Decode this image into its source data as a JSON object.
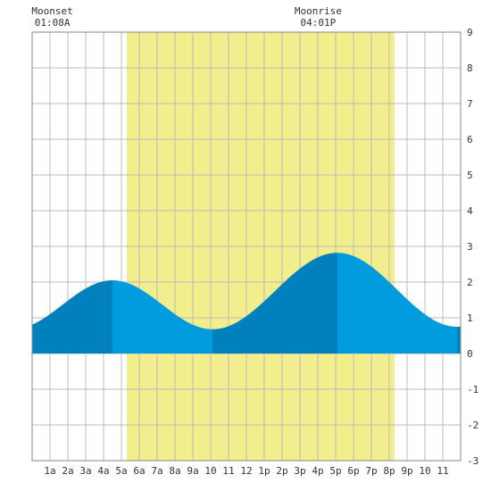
{
  "chart_data": {
    "type": "area",
    "title": "",
    "xlabel": "",
    "ylabel": "",
    "x_range": [
      0,
      24
    ],
    "ylim": [
      -3,
      9
    ],
    "y_ticks": [
      "-3",
      "-2",
      "-1",
      "0",
      "1",
      "2",
      "3",
      "4",
      "5",
      "6",
      "7",
      "8",
      "9"
    ],
    "x_tick_hours": [
      1,
      2,
      3,
      4,
      5,
      6,
      7,
      8,
      9,
      10,
      11,
      12,
      13,
      14,
      15,
      16,
      17,
      18,
      19,
      20,
      21,
      22,
      23
    ],
    "x_tick_labels": [
      "1a",
      "2a",
      "3a",
      "4a",
      "5a",
      "6a",
      "7a",
      "8a",
      "9a",
      "10",
      "11",
      "12",
      "1p",
      "2p",
      "3p",
      "4p",
      "5p",
      "6p",
      "7p",
      "8p",
      "9p",
      "10",
      "11"
    ],
    "daylight_hours": [
      5.3,
      20.3
    ],
    "moon_events": [
      {
        "label": "Moonset",
        "time": "01:08A",
        "hour": 1.13
      },
      {
        "label": "Moonrise",
        "time": "04:01P",
        "hour": 16.02
      }
    ],
    "extrema": [
      {
        "hour": 4.5,
        "value": 2.05,
        "kind": "high"
      },
      {
        "hour": 10.1,
        "value": 0.68,
        "kind": "low"
      },
      {
        "hour": 17.1,
        "value": 2.82,
        "kind": "high"
      },
      {
        "hour": 23.8,
        "value": 0.75,
        "kind": "low"
      }
    ],
    "start_value": 1.0,
    "colors": {
      "daylight": "#f2ed8d",
      "tide_dark": "#0080bc",
      "tide_light": "#009cdd",
      "grid": "#bbbbbb",
      "frame": "#888888"
    }
  }
}
